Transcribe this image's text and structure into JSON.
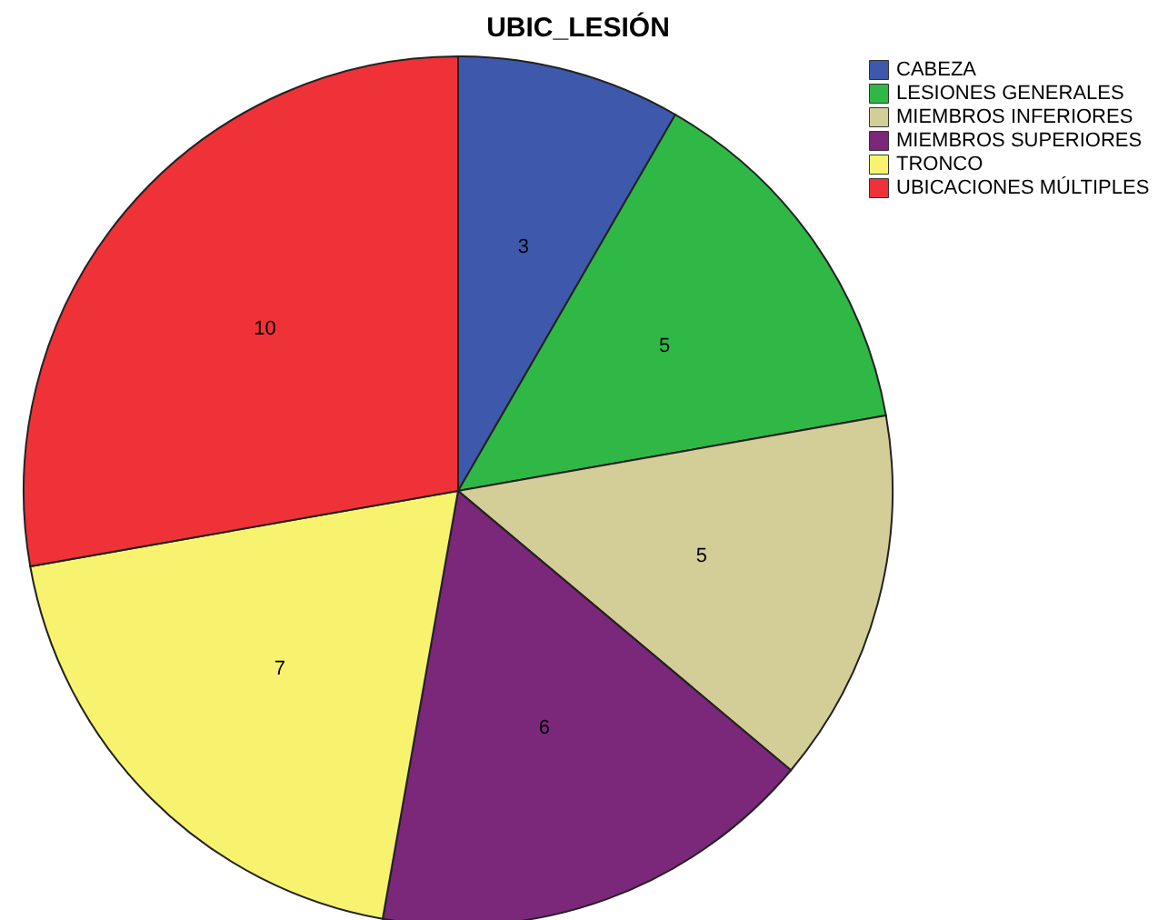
{
  "chart_data": {
    "type": "pie",
    "title": "UBIC_LESIÓN",
    "categories": [
      "CABEZA",
      "LESIONES GENERALES",
      "MIEMBROS INFERIORES",
      "MIEMBROS SUPERIORES",
      "TRONCO",
      "UBICACIONES MÚLTIPLES"
    ],
    "values": [
      3,
      5,
      5,
      6,
      7,
      10
    ],
    "colors": [
      "#3e58ac",
      "#2fb846",
      "#d3ce97",
      "#7b277a",
      "#f8f36f",
      "#ee3238"
    ],
    "data_labels": true,
    "legend": "top right"
  }
}
